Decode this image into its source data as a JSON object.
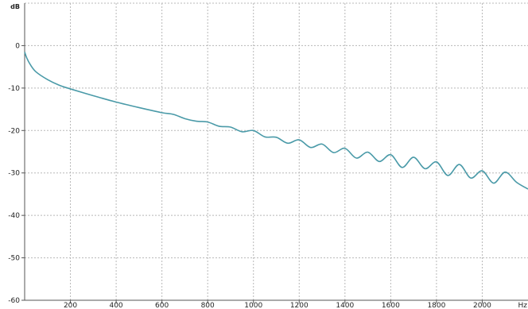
{
  "chart_data": {
    "type": "line",
    "title": "",
    "y_unit_label": "dB",
    "x_unit_label": "Hz",
    "xlim": [
      0,
      2200
    ],
    "ylim": [
      -60,
      10
    ],
    "grid": true,
    "x_ticks": [
      200,
      400,
      600,
      800,
      1000,
      1200,
      1400,
      1600,
      1800,
      2000
    ],
    "x_tick_labels": [
      "200",
      "400",
      "600",
      "800",
      "1000",
      "1200",
      "1400",
      "1600",
      "1800",
      "2000"
    ],
    "y_ticks": [
      0,
      -10,
      -20,
      -30,
      -40,
      -50,
      -60
    ],
    "y_tick_labels": [
      "0",
      "-10",
      "-20",
      "-30",
      "-40",
      "-50",
      "-60"
    ],
    "series": [
      {
        "color": "#4a9aa8",
        "x": [
          0,
          10,
          25,
          50,
          100,
          150,
          200,
          300,
          400,
          500,
          600,
          650,
          700,
          750,
          800,
          850,
          900,
          950,
          1000,
          1050,
          1100,
          1150,
          1200,
          1250,
          1300,
          1350,
          1400,
          1450,
          1500,
          1550,
          1600,
          1650,
          1700,
          1750,
          1800,
          1850,
          1900,
          1950,
          2000,
          2050,
          2100,
          2150,
          2200
        ],
        "y": [
          -1.5,
          -3.0,
          -4.5,
          -6.2,
          -8.0,
          -9.3,
          -10.2,
          -11.8,
          -13.3,
          -14.6,
          -15.8,
          -16.2,
          -17.2,
          -17.8,
          -18.0,
          -19.0,
          -19.2,
          -20.3,
          -20.0,
          -21.5,
          -21.6,
          -23.0,
          -22.2,
          -24.0,
          -23.2,
          -25.2,
          -24.2,
          -26.5,
          -25.1,
          -27.3,
          -25.7,
          -28.7,
          -26.3,
          -29.0,
          -27.4,
          -30.6,
          -28.0,
          -31.2,
          -29.5,
          -32.4,
          -29.8,
          -32.2,
          -33.8
        ]
      }
    ]
  }
}
